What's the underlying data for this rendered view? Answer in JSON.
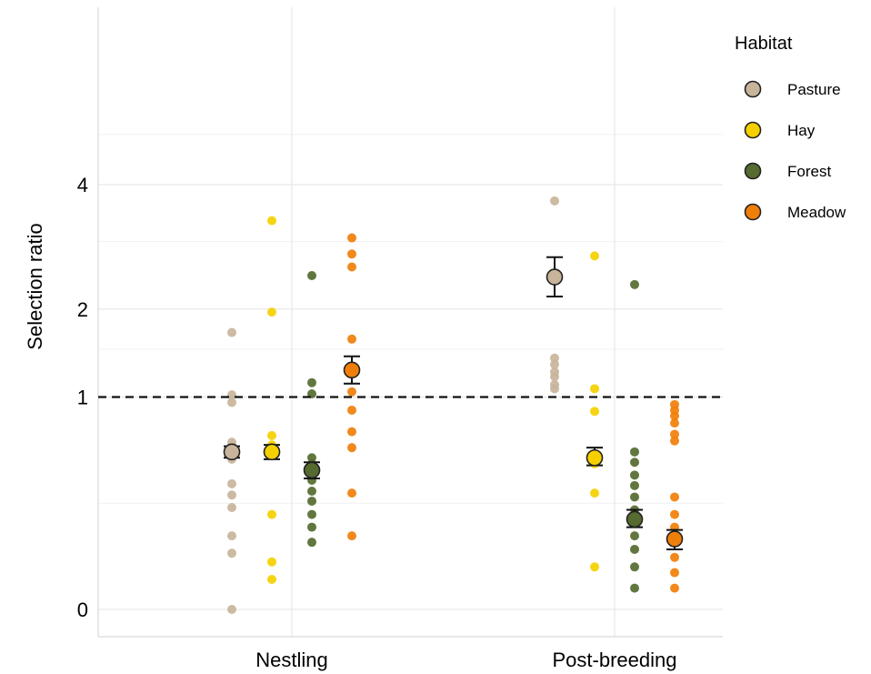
{
  "chart_data": {
    "type": "scatter",
    "title": "",
    "xlabel": "",
    "ylabel": "Selection ratio",
    "categories": [
      "Nestling",
      "Post-breeding"
    ],
    "y_ticks": [
      0,
      1,
      2,
      4
    ],
    "y_scale": "sqrt",
    "ylim": [
      0,
      5.5
    ],
    "reference_line": 1,
    "grid": true,
    "legend": {
      "title": "Habitat",
      "position": "right",
      "items": [
        "Pasture",
        "Hay",
        "Forest",
        "Meadow"
      ]
    },
    "colors": {
      "Pasture": "#c8b49a",
      "Hay": "#f5d000",
      "Forest": "#556b2f",
      "Meadow": "#f07f0a"
    },
    "series": [
      {
        "name": "Pasture",
        "points": {
          "Nestling": [
            1.7,
            1.02,
            0.95,
            0.62,
            0.58,
            0.53,
            0.5,
            0.35,
            0.29,
            0.23,
            0.12,
            0.07,
            0.0
          ],
          "Post-breeding": [
            3.7,
            1.4,
            1.33,
            1.25,
            1.2,
            1.12,
            1.08
          ]
        },
        "mean": {
          "Nestling": 0.55,
          "Post-breeding": 2.45
        },
        "error": {
          "Nestling": [
            0.51,
            0.59
          ],
          "Post-breeding": [
            2.17,
            2.75
          ]
        }
      },
      {
        "name": "Hay",
        "points": {
          "Nestling": [
            3.35,
            1.96,
            0.67,
            0.6,
            0.57,
            0.53,
            0.2,
            0.05,
            0.02
          ],
          "Post-breeding": [
            2.77,
            1.08,
            0.87,
            0.53,
            0.47,
            0.3,
            0.04
          ]
        },
        "mean": {
          "Nestling": 0.55,
          "Post-breeding": 0.51
        },
        "error": {
          "Nestling": [
            0.5,
            0.6
          ],
          "Post-breeding": [
            0.46,
            0.58
          ]
        }
      },
      {
        "name": "Forest",
        "points": {
          "Nestling": [
            2.47,
            1.14,
            1.03,
            0.51,
            0.47,
            0.43,
            0.37,
            0.31,
            0.26,
            0.2,
            0.15,
            0.1
          ],
          "Post-breeding": [
            2.34,
            0.55,
            0.48,
            0.4,
            0.34,
            0.28,
            0.22,
            0.17,
            0.12,
            0.08,
            0.04,
            0.01
          ]
        },
        "mean": {
          "Nestling": 0.43,
          "Post-breeding": 0.18
        },
        "error": {
          "Nestling": [
            0.38,
            0.48
          ],
          "Post-breeding": [
            0.15,
            0.22
          ]
        }
      },
      {
        "name": "Meadow",
        "points": {
          "Nestling": [
            3.06,
            2.8,
            2.6,
            1.62,
            1.27,
            1.05,
            0.88,
            0.7,
            0.58,
            0.3,
            0.12
          ],
          "Post-breeding": [
            0.93,
            0.88,
            0.83,
            0.77,
            0.68,
            0.63,
            0.28,
            0.2,
            0.15,
            0.1,
            0.06,
            0.03,
            0.01
          ]
        },
        "mean": {
          "Nestling": 1.27,
          "Post-breeding": 0.11
        },
        "error": {
          "Nestling": [
            1.13,
            1.42
          ],
          "Post-breeding": [
            0.08,
            0.14
          ]
        }
      }
    ]
  }
}
